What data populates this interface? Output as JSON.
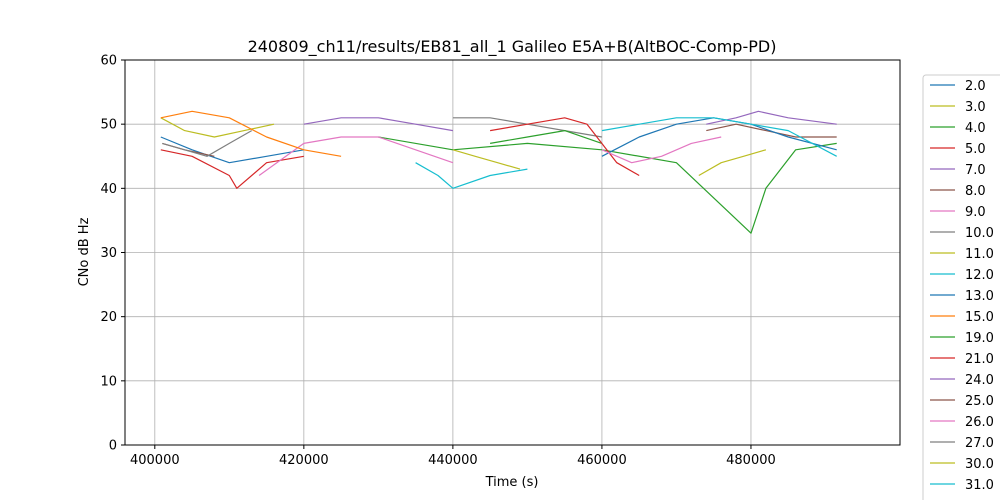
{
  "chart_data": {
    "type": "line",
    "title": "240809_ch11/results/EB81_all_1 Galileo E5A+B(AltBOC-Comp-PD)",
    "xlabel": "Time (s)",
    "ylabel": "CNo dB Hz",
    "xlim": [
      396000,
      500000
    ],
    "ylim": [
      0,
      60
    ],
    "xticks": [
      400000,
      420000,
      440000,
      460000,
      480000
    ],
    "xtick_labels": [
      "400000",
      "420000",
      "440000",
      "460000",
      "480000"
    ],
    "yticks": [
      0,
      10,
      20,
      30,
      40,
      50,
      60
    ],
    "ytick_labels": [
      "0",
      "10",
      "20",
      "30",
      "40",
      "50",
      "60"
    ],
    "grid": true,
    "legend_position": "right-outside",
    "series": [
      {
        "name": "2.0",
        "color": "#1f77b4",
        "x": [
          400800,
          405000,
          410000,
          415000,
          420000
        ],
        "y": [
          48,
          46,
          44,
          45,
          46
        ]
      },
      {
        "name": "3.0",
        "color": "#bcbd22",
        "x": [
          400800,
          404000,
          408000,
          412000,
          416000
        ],
        "y": [
          51,
          49,
          48,
          49,
          50
        ]
      },
      {
        "name": "4.0",
        "color": "#2ca02c",
        "x": [
          430000,
          440000,
          450000,
          460000,
          470000,
          480000,
          482000,
          486000,
          491500
        ],
        "y": [
          48,
          46,
          47,
          46,
          44,
          33,
          40,
          46,
          47
        ]
      },
      {
        "name": "5.0",
        "color": "#d62728",
        "x": [
          400800,
          405000,
          410000,
          411000,
          415000,
          420000
        ],
        "y": [
          46,
          45,
          42,
          40,
          44,
          45
        ]
      },
      {
        "name": "7.0",
        "color": "#9467bd",
        "x": [
          420000,
          425000,
          430000,
          435000,
          440000
        ],
        "y": [
          50,
          51,
          51,
          50,
          49
        ]
      },
      {
        "name": "8.0",
        "color": "#8c564b",
        "x": [
          474000,
          478000,
          482000,
          486000,
          491500
        ],
        "y": [
          49,
          50,
          49,
          48,
          48
        ]
      },
      {
        "name": "9.0",
        "color": "#e377c2",
        "x": [
          414000,
          420000,
          425000,
          430000,
          435000,
          440000
        ],
        "y": [
          42,
          47,
          48,
          48,
          46,
          44
        ]
      },
      {
        "name": "10.0",
        "color": "#7f7f7f",
        "x": [
          440000,
          445000,
          450000,
          455000,
          460000
        ],
        "y": [
          51,
          51,
          50,
          49,
          48
        ]
      },
      {
        "name": "11.0",
        "color": "#bcbd22",
        "x": [
          440000,
          443000,
          446000,
          449000
        ],
        "y": [
          46,
          45,
          44,
          43
        ]
      },
      {
        "name": "12.0",
        "color": "#17becf",
        "x": [
          435000,
          438000,
          440000,
          445000,
          450000
        ],
        "y": [
          44,
          42,
          40,
          42,
          43
        ]
      },
      {
        "name": "13.0",
        "color": "#1f77b4",
        "x": [
          460000,
          465000,
          470000,
          475000,
          480000,
          485000,
          491500
        ],
        "y": [
          45,
          48,
          50,
          51,
          50,
          48,
          46
        ]
      },
      {
        "name": "15.0",
        "color": "#ff7f0e",
        "x": [
          400800,
          405000,
          410000,
          415000,
          420000,
          425000
        ],
        "y": [
          51,
          52,
          51,
          48,
          46,
          45
        ]
      },
      {
        "name": "19.0",
        "color": "#2ca02c",
        "x": [
          445000,
          450000,
          455000,
          460000
        ],
        "y": [
          47,
          48,
          49,
          47
        ]
      },
      {
        "name": "21.0",
        "color": "#d62728",
        "x": [
          445000,
          450000,
          455000,
          458000,
          462000,
          465000
        ],
        "y": [
          49,
          50,
          51,
          50,
          44,
          42
        ]
      },
      {
        "name": "24.0",
        "color": "#9467bd",
        "x": [
          474000,
          478000,
          481000,
          485000,
          491500
        ],
        "y": [
          50,
          51,
          52,
          51,
          50
        ]
      },
      {
        "name": "25.0",
        "color": "#8c564b",
        "x": [
          401000,
          404000,
          408000
        ],
        "y": [
          47,
          46,
          45
        ]
      },
      {
        "name": "26.0",
        "color": "#e377c2",
        "x": [
          460000,
          464000,
          468000,
          472000,
          476000
        ],
        "y": [
          46,
          44,
          45,
          47,
          48
        ]
      },
      {
        "name": "27.0",
        "color": "#7f7f7f",
        "x": [
          401000,
          404000,
          407000,
          410000,
          413000
        ],
        "y": [
          47,
          46,
          45,
          47,
          49
        ]
      },
      {
        "name": "30.0",
        "color": "#bcbd22",
        "x": [
          473000,
          476000,
          479000,
          482000
        ],
        "y": [
          42,
          44,
          45,
          46
        ]
      },
      {
        "name": "31.0",
        "color": "#17becf",
        "x": [
          460000,
          465000,
          470000,
          475000,
          480000,
          485000,
          491500
        ],
        "y": [
          49,
          50,
          51,
          51,
          50,
          49,
          45
        ]
      }
    ]
  }
}
